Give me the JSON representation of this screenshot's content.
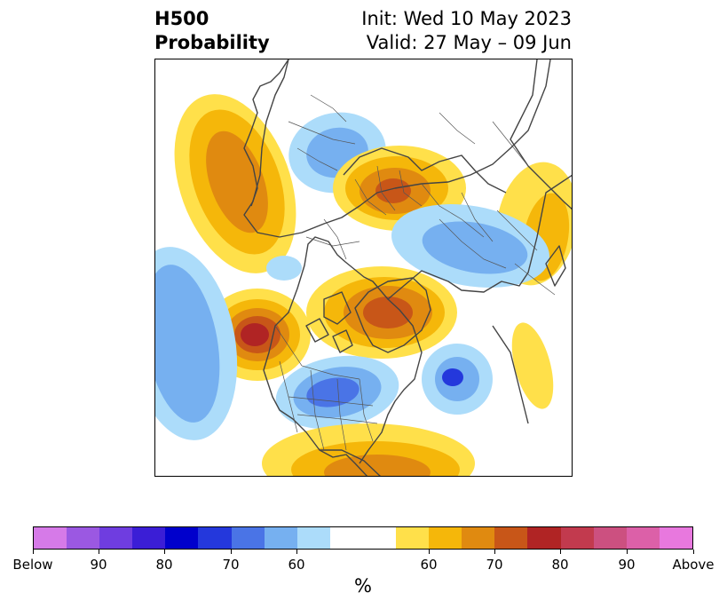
{
  "title": {
    "line1": "H500",
    "line2": "Probability",
    "init": "Init: Wed 10 May 2023",
    "valid": "Valid: 27 May – 09 Jun"
  },
  "colorbar": {
    "unit": "%",
    "colors": [
      "#d67ae8",
      "#9b58e2",
      "#6f3de0",
      "#3b1ed6",
      "#0000cc",
      "#2438dc",
      "#4a74e6",
      "#76b0f0",
      "#acdcfa",
      "#ffffff",
      "#ffffff",
      "#ffe04a",
      "#f5b70a",
      "#e08a10",
      "#c85618",
      "#b02424",
      "#c23a4e",
      "#cc5080",
      "#dc60a8",
      "#e878de"
    ],
    "labels": [
      "Below",
      "90",
      "80",
      "70",
      "60",
      "60",
      "70",
      "80",
      "90",
      "Above"
    ]
  },
  "map": {
    "anomalies": [
      {
        "name": "n-pacific-high",
        "levels": [
          11,
          12,
          13
        ]
      },
      {
        "name": "alaska-canada-low",
        "levels": [
          8,
          7
        ]
      },
      {
        "name": "scandinavia-high",
        "levels": [
          11,
          12,
          13,
          14
        ]
      },
      {
        "name": "siberia-high",
        "levels": [
          11,
          12
        ]
      },
      {
        "name": "east-asia-low",
        "levels": [
          8,
          7
        ]
      },
      {
        "name": "greenland-arctic-high",
        "levels": [
          11,
          12,
          13,
          14
        ]
      },
      {
        "name": "ne-pacific-high",
        "levels": [
          11,
          12,
          13,
          14,
          15
        ]
      },
      {
        "name": "subtropical-pacific-low-band",
        "levels": [
          8,
          7
        ]
      },
      {
        "name": "western-us-low",
        "levels": [
          8,
          7,
          6
        ]
      },
      {
        "name": "n-atlantic-low",
        "levels": [
          8,
          7,
          5
        ]
      },
      {
        "name": "mid-atlantic-high",
        "levels": [
          11
        ]
      },
      {
        "name": "southern-us-high",
        "levels": [
          11,
          12,
          13
        ]
      },
      {
        "name": "caribbean-low",
        "levels": [
          8
        ]
      }
    ]
  }
}
